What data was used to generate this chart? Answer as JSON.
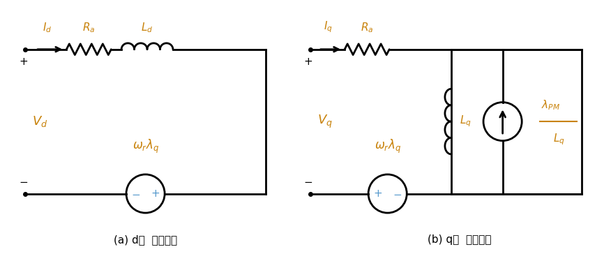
{
  "fig_width": 8.76,
  "fig_height": 3.64,
  "dpi": 100,
  "bg_color": "#ffffff",
  "line_color": "#000000",
  "label_color": "#c8820a",
  "plus_minus_color": "#5599cc",
  "line_width": 2.0,
  "caption_a": "(a) d축  등가회로",
  "caption_b": "(b) q축  등가회로"
}
